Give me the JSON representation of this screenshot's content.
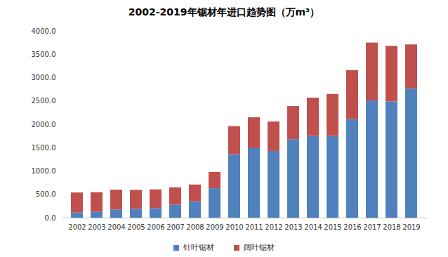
{
  "chart_data": {
    "type": "bar",
    "stacked": true,
    "title": "2002-2019年锯材年进口趋势图（万m³）",
    "categories": [
      "2002",
      "2003",
      "2004",
      "2005",
      "2006",
      "2007",
      "2008",
      "2009",
      "2010",
      "2011",
      "2012",
      "2013",
      "2014",
      "2015",
      "2016",
      "2017",
      "2018",
      "2019"
    ],
    "series": [
      {
        "name": "针叶锯材",
        "color": "#4f81bd",
        "values": [
          110,
          125,
          175,
          190,
          205,
          280,
          350,
          630,
          1360,
          1490,
          1430,
          1680,
          1750,
          1750,
          2110,
          2510,
          2490,
          2770
        ]
      },
      {
        "name": "阔叶锯材",
        "color": "#c0504d",
        "values": [
          430,
          420,
          425,
          405,
          400,
          370,
          360,
          350,
          600,
          660,
          630,
          710,
          820,
          900,
          1050,
          1240,
          1190,
          940
        ]
      }
    ],
    "ylim": [
      0,
      4000
    ],
    "yticks": [
      {
        "value": 0,
        "label": "0.0"
      },
      {
        "value": 500,
        "label": "500.0"
      },
      {
        "value": 1000,
        "label": "1000.0"
      },
      {
        "value": 1500,
        "label": "1500.0"
      },
      {
        "value": 2000,
        "label": "2000.0"
      },
      {
        "value": 2500,
        "label": "2500.0"
      },
      {
        "value": 3000,
        "label": "3000.0"
      },
      {
        "value": 3500,
        "label": "3500.0"
      },
      {
        "value": 4000,
        "label": "4000.0"
      }
    ],
    "grid": false,
    "legend": "bottom"
  }
}
